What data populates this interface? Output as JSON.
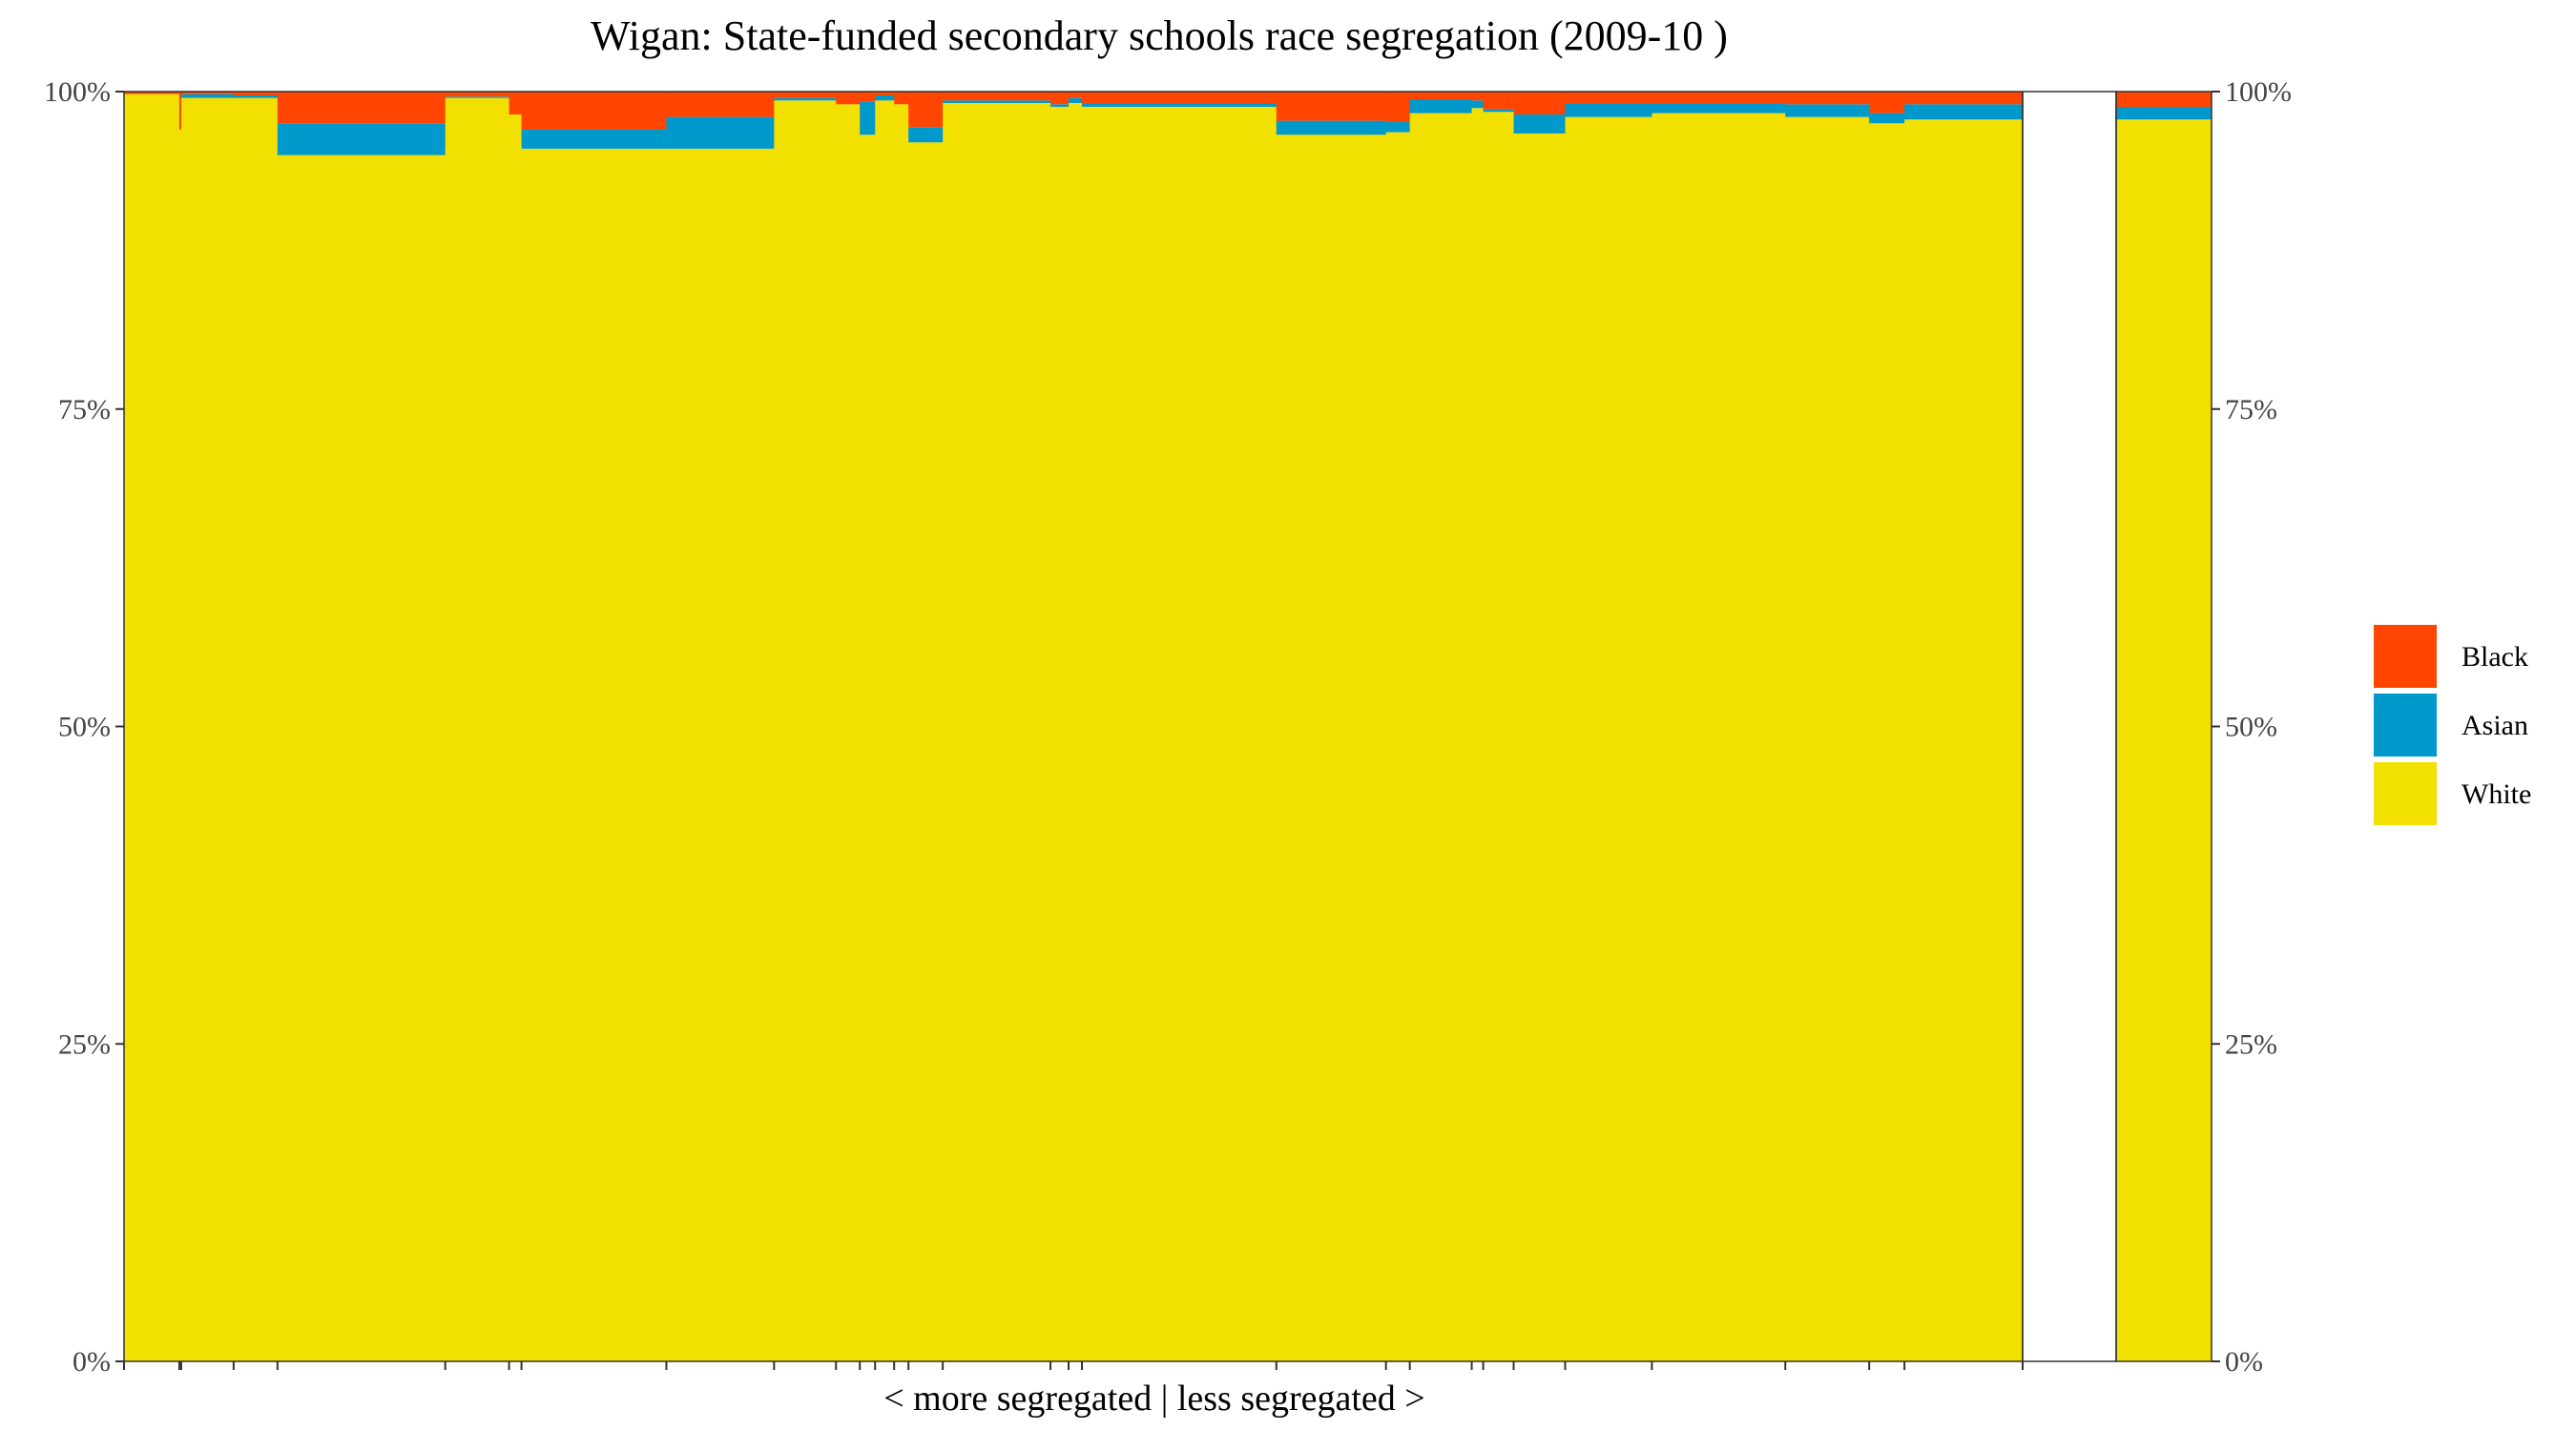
{
  "chart_data": {
    "type": "bar",
    "subtype": "stacked-100-percent-variable-width",
    "title": "Wigan: State-funded secondary schools race segregation (2009-10 )",
    "xlabel": "< more segregated | less segregated >",
    "ylabel": "",
    "ylim": [
      0,
      100
    ],
    "y_ticks": [
      "0%",
      "25%",
      "50%",
      "75%",
      "100%"
    ],
    "y_tick_values": [
      0,
      25,
      50,
      75,
      100
    ],
    "legend_position": "right",
    "series": [
      {
        "name": "Black",
        "color": "#FF4500"
      },
      {
        "name": "Asian",
        "color": "#0099CC"
      },
      {
        "name": "White",
        "color": "#F2E000"
      }
    ],
    "stack_order": [
      "White",
      "Asian",
      "Black"
    ],
    "schools": [
      {
        "share": 5.8,
        "White": 99.8,
        "Asian": 0.0,
        "Black": 0.2
      },
      {
        "share": 0.2,
        "White": 97.0,
        "Asian": 0.0,
        "Black": 3.0
      },
      {
        "share": 5.5,
        "White": 99.5,
        "Asian": 0.3,
        "Black": 0.2
      },
      {
        "share": 4.6,
        "White": 99.5,
        "Asian": 0.2,
        "Black": 0.3
      },
      {
        "share": 17.6,
        "White": 95.0,
        "Asian": 2.5,
        "Black": 2.5
      },
      {
        "share": 6.7,
        "White": 99.5,
        "Asian": 0.1,
        "Black": 0.4
      },
      {
        "share": 1.3,
        "White": 98.2,
        "Asian": 0.0,
        "Black": 1.8
      },
      {
        "share": 15.2,
        "White": 95.5,
        "Asian": 1.5,
        "Black": 3.0
      },
      {
        "share": 11.3,
        "White": 95.5,
        "Asian": 2.5,
        "Black": 2.0
      },
      {
        "share": 6.5,
        "White": 99.3,
        "Asian": 0.2,
        "Black": 0.5
      },
      {
        "share": 2.5,
        "White": 99.0,
        "Asian": 0.0,
        "Black": 1.0
      },
      {
        "share": 1.6,
        "White": 96.6,
        "Asian": 2.6,
        "Black": 0.8
      },
      {
        "share": 2.0,
        "White": 99.3,
        "Asian": 0.4,
        "Black": 0.3
      },
      {
        "share": 1.5,
        "White": 99.0,
        "Asian": 0.0,
        "Black": 1.0
      },
      {
        "share": 3.6,
        "White": 96.0,
        "Asian": 1.2,
        "Black": 2.8
      },
      {
        "share": 11.3,
        "White": 99.1,
        "Asian": 0.2,
        "Black": 0.7
      },
      {
        "share": 1.9,
        "White": 98.8,
        "Asian": 0.2,
        "Black": 1.0
      },
      {
        "share": 1.4,
        "White": 99.1,
        "Asian": 0.4,
        "Black": 0.5
      },
      {
        "share": 20.4,
        "White": 98.8,
        "Asian": 0.3,
        "Black": 0.9
      },
      {
        "share": 11.5,
        "White": 96.6,
        "Asian": 1.1,
        "Black": 2.3
      },
      {
        "share": 2.5,
        "White": 96.8,
        "Asian": 0.8,
        "Black": 2.4
      },
      {
        "share": 6.5,
        "White": 98.3,
        "Asian": 1.1,
        "Black": 0.6
      },
      {
        "share": 1.2,
        "White": 98.7,
        "Asian": 0.6,
        "Black": 0.7
      },
      {
        "share": 3.2,
        "White": 98.4,
        "Asian": 0.2,
        "Black": 1.4
      },
      {
        "share": 5.4,
        "White": 96.7,
        "Asian": 1.5,
        "Black": 1.8
      },
      {
        "share": 9.1,
        "White": 98.0,
        "Asian": 1.1,
        "Black": 0.9
      },
      {
        "share": 14.0,
        "White": 98.3,
        "Asian": 0.8,
        "Black": 0.9
      },
      {
        "share": 8.8,
        "White": 98.0,
        "Asian": 1.0,
        "Black": 1.0
      },
      {
        "share": 3.7,
        "White": 97.5,
        "Asian": 0.8,
        "Black": 1.7
      },
      {
        "share": 12.4,
        "White": 97.8,
        "Asian": 1.2,
        "Black": 1.0
      }
    ],
    "overall": {
      "White": 97.8,
      "Asian": 1.0,
      "Black": 1.2
    }
  }
}
